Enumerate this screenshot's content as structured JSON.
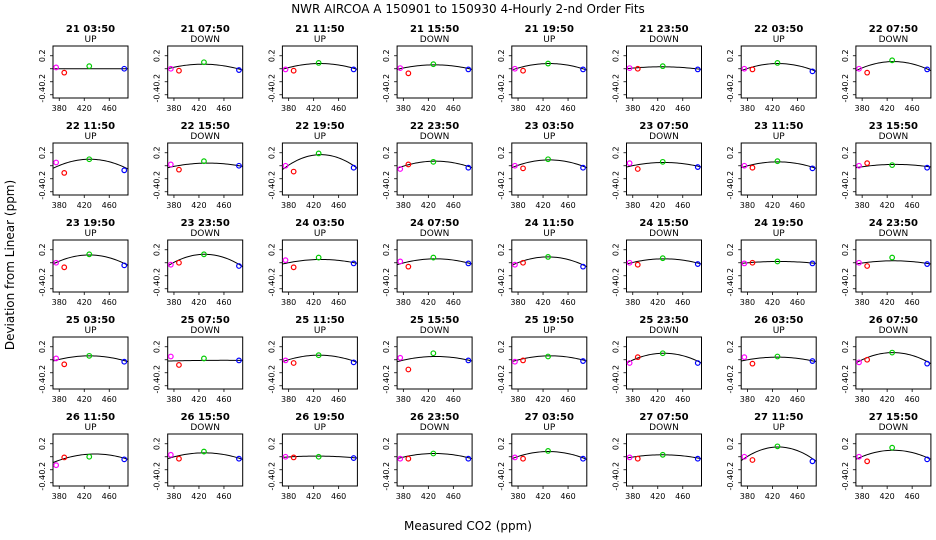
{
  "title": "NWR   AIRCOA A   150901 to 150930   4-Hourly 2-nd Order Fits",
  "xlabel": "Measured CO2 (ppm)",
  "ylabel": "Deviation from Linear (ppm)",
  "x_ticks": [
    "380",
    "420",
    "460"
  ],
  "y_ticks": [
    "-0.4",
    "-0.2",
    "0.0",
    "0.2"
  ],
  "colors": {
    "p1": "#ff00ff",
    "p2": "#ff0000",
    "p3": "#00cc00",
    "p4": "#0000ff",
    "fit": "#000000"
  },
  "chart_data": {
    "type": "scatter",
    "xlim": [
      370,
      490
    ],
    "ylim": [
      -0.45,
      0.35
    ],
    "standards_x": [
      375,
      388,
      428,
      484
    ],
    "panels": [
      {
        "time": "21 03:50",
        "dir": "UP",
        "y": [
          0.02,
          -0.06,
          0.04,
          0.0
        ],
        "fit": [
          0.0,
          0.0,
          0.0
        ]
      },
      {
        "time": "21 07:50",
        "dir": "DOWN",
        "y": [
          0.0,
          -0.03,
          0.1,
          -0.02
        ],
        "fit": [
          0.0,
          0.07,
          -0.02
        ]
      },
      {
        "time": "21 11:50",
        "dir": "UP",
        "y": [
          -0.01,
          -0.03,
          0.09,
          -0.01
        ],
        "fit": [
          -0.01,
          0.08,
          -0.01
        ]
      },
      {
        "time": "21 15:50",
        "dir": "DOWN",
        "y": [
          0.01,
          -0.07,
          0.07,
          -0.01
        ],
        "fit": [
          -0.01,
          0.06,
          -0.01
        ]
      },
      {
        "time": "21 19:50",
        "dir": "UP",
        "y": [
          0.0,
          -0.03,
          0.08,
          -0.01
        ],
        "fit": [
          -0.02,
          0.08,
          -0.02
        ]
      },
      {
        "time": "21 23:50",
        "dir": "DOWN",
        "y": [
          0.01,
          0.0,
          0.04,
          -0.01
        ],
        "fit": [
          0.0,
          0.03,
          -0.01
        ]
      },
      {
        "time": "22 03:50",
        "dir": "UP",
        "y": [
          0.0,
          -0.01,
          0.09,
          -0.04
        ],
        "fit": [
          -0.03,
          0.08,
          -0.04
        ]
      },
      {
        "time": "22 07:50",
        "dir": "DOWN",
        "y": [
          0.0,
          -0.06,
          0.13,
          -0.01
        ],
        "fit": [
          -0.03,
          0.11,
          -0.03
        ]
      },
      {
        "time": "22 11:50",
        "dir": "UP",
        "y": [
          0.05,
          -0.11,
          0.1,
          -0.07
        ],
        "fit": [
          -0.04,
          0.1,
          -0.05
        ]
      },
      {
        "time": "22 15:50",
        "dir": "DOWN",
        "y": [
          0.02,
          -0.06,
          0.07,
          0.0
        ],
        "fit": [
          -0.03,
          0.04,
          -0.01
        ]
      },
      {
        "time": "22 19:50",
        "dir": "UP",
        "y": [
          0.0,
          -0.09,
          0.19,
          -0.03
        ],
        "fit": [
          -0.06,
          0.17,
          -0.04
        ]
      },
      {
        "time": "22 23:50",
        "dir": "DOWN",
        "y": [
          -0.05,
          0.02,
          0.06,
          -0.03
        ],
        "fit": [
          -0.04,
          0.07,
          -0.03
        ]
      },
      {
        "time": "23 03:50",
        "dir": "UP",
        "y": [
          0.0,
          -0.04,
          0.1,
          -0.03
        ],
        "fit": [
          -0.03,
          0.09,
          -0.03
        ]
      },
      {
        "time": "23 07:50",
        "dir": "DOWN",
        "y": [
          0.04,
          -0.05,
          0.06,
          -0.02
        ],
        "fit": [
          -0.02,
          0.05,
          -0.02
        ]
      },
      {
        "time": "23 11:50",
        "dir": "UP",
        "y": [
          0.0,
          -0.03,
          0.07,
          -0.04
        ],
        "fit": [
          -0.03,
          0.06,
          -0.04
        ]
      },
      {
        "time": "23 15:50",
        "dir": "DOWN",
        "y": [
          0.0,
          0.04,
          0.01,
          -0.03
        ],
        "fit": [
          -0.03,
          0.02,
          -0.02
        ]
      },
      {
        "time": "23 19:50",
        "dir": "UP",
        "y": [
          0.0,
          -0.07,
          0.13,
          -0.04
        ],
        "fit": [
          -0.02,
          0.12,
          -0.04
        ]
      },
      {
        "time": "23 23:50",
        "dir": "DOWN",
        "y": [
          -0.03,
          0.0,
          0.13,
          -0.05
        ],
        "fit": [
          -0.05,
          0.13,
          -0.06
        ]
      },
      {
        "time": "24 03:50",
        "dir": "UP",
        "y": [
          0.04,
          -0.07,
          0.08,
          -0.01
        ],
        "fit": [
          -0.02,
          0.05,
          -0.01
        ]
      },
      {
        "time": "24 07:50",
        "dir": "DOWN",
        "y": [
          0.02,
          -0.06,
          0.08,
          -0.01
        ],
        "fit": [
          -0.03,
          0.06,
          -0.02
        ]
      },
      {
        "time": "24 11:50",
        "dir": "UP",
        "y": [
          -0.03,
          0.0,
          0.09,
          -0.06
        ],
        "fit": [
          -0.04,
          0.09,
          -0.06
        ]
      },
      {
        "time": "24 15:50",
        "dir": "DOWN",
        "y": [
          0.0,
          -0.03,
          0.07,
          -0.02
        ],
        "fit": [
          -0.02,
          0.06,
          -0.02
        ]
      },
      {
        "time": "24 19:50",
        "dir": "UP",
        "y": [
          -0.01,
          0.0,
          0.02,
          -0.01
        ],
        "fit": [
          -0.01,
          0.02,
          -0.01
        ]
      },
      {
        "time": "24 23:50",
        "dir": "DOWN",
        "y": [
          0.0,
          -0.05,
          0.08,
          -0.02
        ],
        "fit": [
          -0.02,
          0.03,
          -0.02
        ]
      },
      {
        "time": "25 03:50",
        "dir": "UP",
        "y": [
          0.02,
          -0.07,
          0.06,
          -0.03
        ],
        "fit": [
          -0.02,
          0.06,
          -0.03
        ]
      },
      {
        "time": "25 07:50",
        "dir": "DOWN",
        "y": [
          0.05,
          -0.08,
          0.02,
          -0.01
        ],
        "fit": [
          -0.02,
          -0.01,
          -0.01
        ]
      },
      {
        "time": "25 11:50",
        "dir": "UP",
        "y": [
          -0.01,
          -0.05,
          0.07,
          -0.04
        ],
        "fit": [
          -0.03,
          0.07,
          -0.04
        ]
      },
      {
        "time": "25 15:50",
        "dir": "DOWN",
        "y": [
          0.03,
          -0.15,
          0.1,
          -0.01
        ],
        "fit": [
          -0.03,
          0.05,
          -0.02
        ]
      },
      {
        "time": "25 19:50",
        "dir": "UP",
        "y": [
          -0.03,
          -0.01,
          0.05,
          -0.02
        ],
        "fit": [
          -0.03,
          0.06,
          -0.02
        ]
      },
      {
        "time": "25 23:50",
        "dir": "DOWN",
        "y": [
          -0.05,
          0.04,
          0.1,
          -0.05
        ],
        "fit": [
          -0.05,
          0.1,
          -0.05
        ]
      },
      {
        "time": "26 03:50",
        "dir": "UP",
        "y": [
          0.04,
          -0.06,
          0.05,
          -0.02
        ],
        "fit": [
          -0.02,
          0.04,
          -0.03
        ]
      },
      {
        "time": "26 07:50",
        "dir": "DOWN",
        "y": [
          -0.04,
          0.0,
          0.11,
          -0.06
        ],
        "fit": [
          -0.05,
          0.11,
          -0.06
        ]
      },
      {
        "time": "26 11:50",
        "dir": "UP",
        "y": [
          -0.13,
          -0.01,
          0.0,
          -0.04
        ],
        "fit": [
          -0.09,
          0.04,
          -0.04
        ]
      },
      {
        "time": "26 15:50",
        "dir": "DOWN",
        "y": [
          0.03,
          -0.03,
          0.08,
          -0.03
        ],
        "fit": [
          -0.03,
          0.06,
          -0.04
        ]
      },
      {
        "time": "26 19:50",
        "dir": "UP",
        "y": [
          0.0,
          -0.01,
          0.0,
          -0.02
        ],
        "fit": [
          -0.01,
          0.01,
          -0.02
        ]
      },
      {
        "time": "26 23:50",
        "dir": "DOWN",
        "y": [
          -0.03,
          -0.03,
          0.05,
          -0.03
        ],
        "fit": [
          -0.03,
          0.05,
          -0.03
        ]
      },
      {
        "time": "27 03:50",
        "dir": "UP",
        "y": [
          -0.01,
          -0.03,
          0.09,
          -0.03
        ],
        "fit": [
          -0.03,
          0.08,
          -0.04
        ]
      },
      {
        "time": "27 07:50",
        "dir": "DOWN",
        "y": [
          -0.01,
          -0.03,
          0.03,
          -0.03
        ],
        "fit": [
          -0.02,
          0.03,
          -0.03
        ]
      },
      {
        "time": "27 11:50",
        "dir": "UP",
        "y": [
          0.0,
          -0.05,
          0.16,
          -0.07
        ],
        "fit": [
          -0.06,
          0.15,
          -0.07
        ]
      },
      {
        "time": "27 15:50",
        "dir": "DOWN",
        "y": [
          0.0,
          -0.07,
          0.14,
          -0.04
        ],
        "fit": [
          -0.04,
          0.1,
          -0.04
        ]
      }
    ]
  }
}
